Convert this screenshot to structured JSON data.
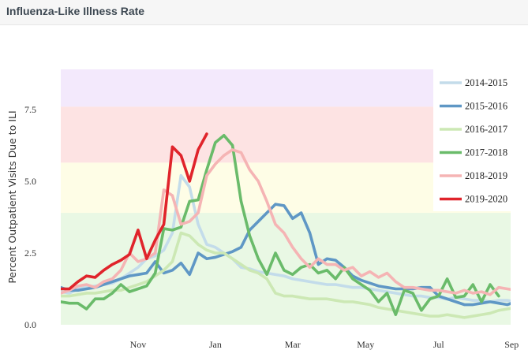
{
  "header": {
    "title": "Influenza-Like Illness Rate"
  },
  "chart_data": {
    "type": "line",
    "ylabel": "Percent Outpatient Visits Due to ILI",
    "xlabel": "",
    "ylim": [
      0,
      8.9
    ],
    "y_ticks": [
      0.0,
      2.5,
      5.0,
      7.5
    ],
    "y_tick_labels": [
      "0.0",
      "2.5",
      "5.0",
      "7.5"
    ],
    "x_ticks": [
      {
        "label": "Nov",
        "week": 9
      },
      {
        "label": "Jan",
        "week": 18
      },
      {
        "label": "Mar",
        "week": 27
      },
      {
        "label": "May",
        "week": 35.5
      },
      {
        "label": "Jul",
        "week": 44
      },
      {
        "label": "Sep",
        "week": 52.5
      }
    ],
    "bands": [
      {
        "from": 0,
        "to": 3.9,
        "color": "#e9f8e4"
      },
      {
        "from": 3.9,
        "to": 5.65,
        "color": "#fefde6"
      },
      {
        "from": 5.65,
        "to": 7.6,
        "color": "#fde3e3"
      },
      {
        "from": 7.6,
        "to": 8.9,
        "color": "#f3e9fc"
      }
    ],
    "series": [
      {
        "name": "2014-2015",
        "color": "#c3dcea",
        "values": [
          1.15,
          1.1,
          1.25,
          1.3,
          1.35,
          1.4,
          1.45,
          1.6,
          1.8,
          2.0,
          2.3,
          2.4,
          2.6,
          3.2,
          5.2,
          4.8,
          3.5,
          2.8,
          2.7,
          2.5,
          2.3,
          2.0,
          1.95,
          1.85,
          1.8,
          1.75,
          1.7,
          1.6,
          1.55,
          1.5,
          1.45,
          1.4,
          1.4,
          1.35,
          1.3,
          1.3,
          1.25,
          1.2,
          1.15,
          1.1,
          1.05,
          1.0,
          1.0,
          0.95,
          0.95,
          0.9,
          0.95,
          0.9,
          0.85,
          0.85,
          0.8,
          0.85,
          0.85,
          0.8
        ]
      },
      {
        "name": "2015-2016",
        "color": "#5f97c5",
        "values": [
          1.3,
          1.2,
          1.2,
          1.25,
          1.3,
          1.4,
          1.5,
          1.6,
          1.7,
          1.75,
          1.8,
          2.2,
          1.8,
          1.9,
          2.15,
          1.75,
          2.5,
          2.3,
          2.35,
          2.45,
          2.55,
          2.7,
          3.3,
          3.6,
          3.9,
          4.2,
          4.15,
          3.7,
          3.9,
          3.2,
          2.1,
          2.3,
          2.25,
          2.0,
          1.7,
          1.55,
          1.45,
          1.35,
          1.3,
          1.25,
          1.25,
          1.25,
          1.3,
          1.3,
          1.0,
          0.9,
          0.8,
          0.7,
          0.7,
          0.75,
          0.8,
          0.75,
          0.7,
          0.8,
          0.85,
          1.0,
          0.95,
          0.9,
          1.0
        ]
      },
      {
        "name": "2016-2017",
        "color": "#cce8b4",
        "values": [
          1.0,
          1.0,
          1.05,
          1.1,
          1.1,
          1.15,
          1.2,
          1.2,
          1.3,
          1.4,
          1.5,
          1.7,
          1.9,
          2.2,
          3.2,
          3.1,
          2.8,
          2.6,
          2.5,
          2.5,
          2.3,
          2.1,
          1.9,
          1.8,
          1.6,
          1.1,
          1.0,
          1.0,
          0.95,
          0.9,
          0.9,
          0.9,
          0.85,
          0.8,
          0.8,
          0.75,
          0.7,
          0.6,
          0.55,
          0.5,
          0.45,
          0.4,
          0.35,
          0.3,
          0.3,
          0.35,
          0.3,
          0.25,
          0.3,
          0.35,
          0.4,
          0.5,
          0.55,
          0.6
        ]
      },
      {
        "name": "2017-2018",
        "color": "#6abb6a",
        "values": [
          0.8,
          0.75,
          0.75,
          0.55,
          0.9,
          0.9,
          1.1,
          1.4,
          1.15,
          1.25,
          1.35,
          1.8,
          3.35,
          3.3,
          3.4,
          4.3,
          4.35,
          5.4,
          6.35,
          6.6,
          6.25,
          4.3,
          3.1,
          2.3,
          1.75,
          2.5,
          1.9,
          1.75,
          2.0,
          2.1,
          1.8,
          1.9,
          1.6,
          2.0,
          1.6,
          1.4,
          1.2,
          0.8,
          1.1,
          0.35,
          1.2,
          1.1,
          0.5,
          0.9,
          1.0,
          1.6,
          0.95,
          1.0,
          1.4,
          0.8,
          1.4,
          1.0
        ]
      },
      {
        "name": "2018-2019",
        "color": "#f5b4b4",
        "values": [
          1.1,
          1.2,
          1.35,
          1.4,
          1.3,
          1.5,
          1.6,
          1.9,
          2.5,
          2.2,
          2.3,
          2.5,
          4.7,
          4.5,
          3.5,
          3.6,
          3.9,
          5.2,
          5.6,
          5.9,
          6.1,
          6.0,
          5.4,
          5.0,
          4.3,
          3.5,
          3.2,
          2.7,
          2.3,
          2.0,
          2.3,
          2.1,
          2.1,
          1.9,
          2.0,
          1.7,
          1.85,
          1.65,
          1.8,
          1.5,
          1.3,
          1.3,
          1.25,
          1.2,
          1.2,
          1.15,
          1.1,
          1.2,
          1.1,
          1.15,
          1.05,
          1.3,
          1.25,
          1.2
        ]
      },
      {
        "name": "2019-2020",
        "color": "#e0242b",
        "values": [
          1.25,
          1.25,
          1.5,
          1.7,
          1.65,
          1.9,
          2.1,
          2.25,
          2.45,
          3.3,
          2.3,
          2.95,
          3.5,
          6.2,
          5.9,
          5.0,
          6.1,
          6.65
        ]
      }
    ]
  }
}
